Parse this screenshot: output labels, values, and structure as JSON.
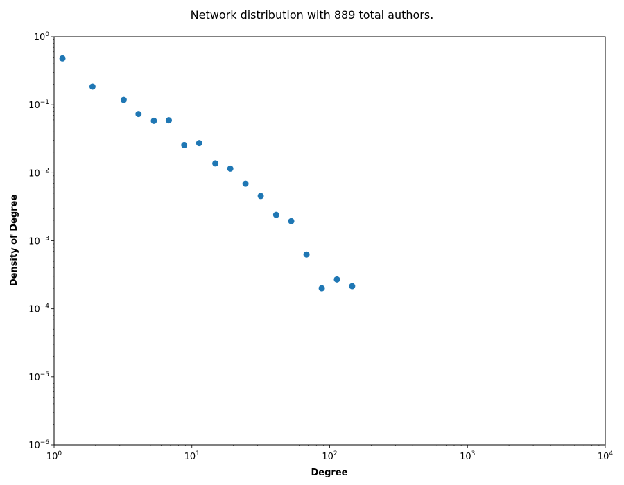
{
  "chart_data": {
    "type": "scatter",
    "title": "Network distribution with 889 total authors.",
    "xlabel": "Degree",
    "ylabel": "Density of Degree",
    "xscale": "log",
    "yscale": "log",
    "xlim": [
      1,
      10000
    ],
    "ylim": [
      1e-06,
      1
    ],
    "grid": false,
    "legend": "none",
    "color": "#1f77b4",
    "x_ticks": [
      {
        "base": "10",
        "exp": "0",
        "value": 1
      },
      {
        "base": "10",
        "exp": "1",
        "value": 10
      },
      {
        "base": "10",
        "exp": "2",
        "value": 100
      },
      {
        "base": "10",
        "exp": "3",
        "value": 1000
      },
      {
        "base": "10",
        "exp": "4",
        "value": 10000
      }
    ],
    "y_ticks": [
      {
        "base": "10",
        "exp": "0",
        "value": 1
      },
      {
        "base": "10",
        "exp": "−1",
        "value": 0.1
      },
      {
        "base": "10",
        "exp": "−2",
        "value": 0.01
      },
      {
        "base": "10",
        "exp": "−3",
        "value": 0.001
      },
      {
        "base": "10",
        "exp": "−4",
        "value": 0.0001
      },
      {
        "base": "10",
        "exp": "−5",
        "value": 1e-05
      },
      {
        "base": "10",
        "exp": "−6",
        "value": 1e-06
      }
    ],
    "x": [
      1.15,
      1.9,
      3.2,
      4.1,
      5.3,
      6.8,
      8.8,
      11.3,
      14.8,
      19.0,
      24.5,
      31.6,
      40.9,
      52.6,
      67.9,
      87.6,
      112.9,
      145.5
    ],
    "y": [
      0.48,
      0.185,
      0.118,
      0.073,
      0.058,
      0.059,
      0.0255,
      0.0272,
      0.0137,
      0.0115,
      0.0069,
      0.00455,
      0.0024,
      0.00194,
      0.00063,
      0.0002,
      0.00027,
      0.000215
    ]
  }
}
